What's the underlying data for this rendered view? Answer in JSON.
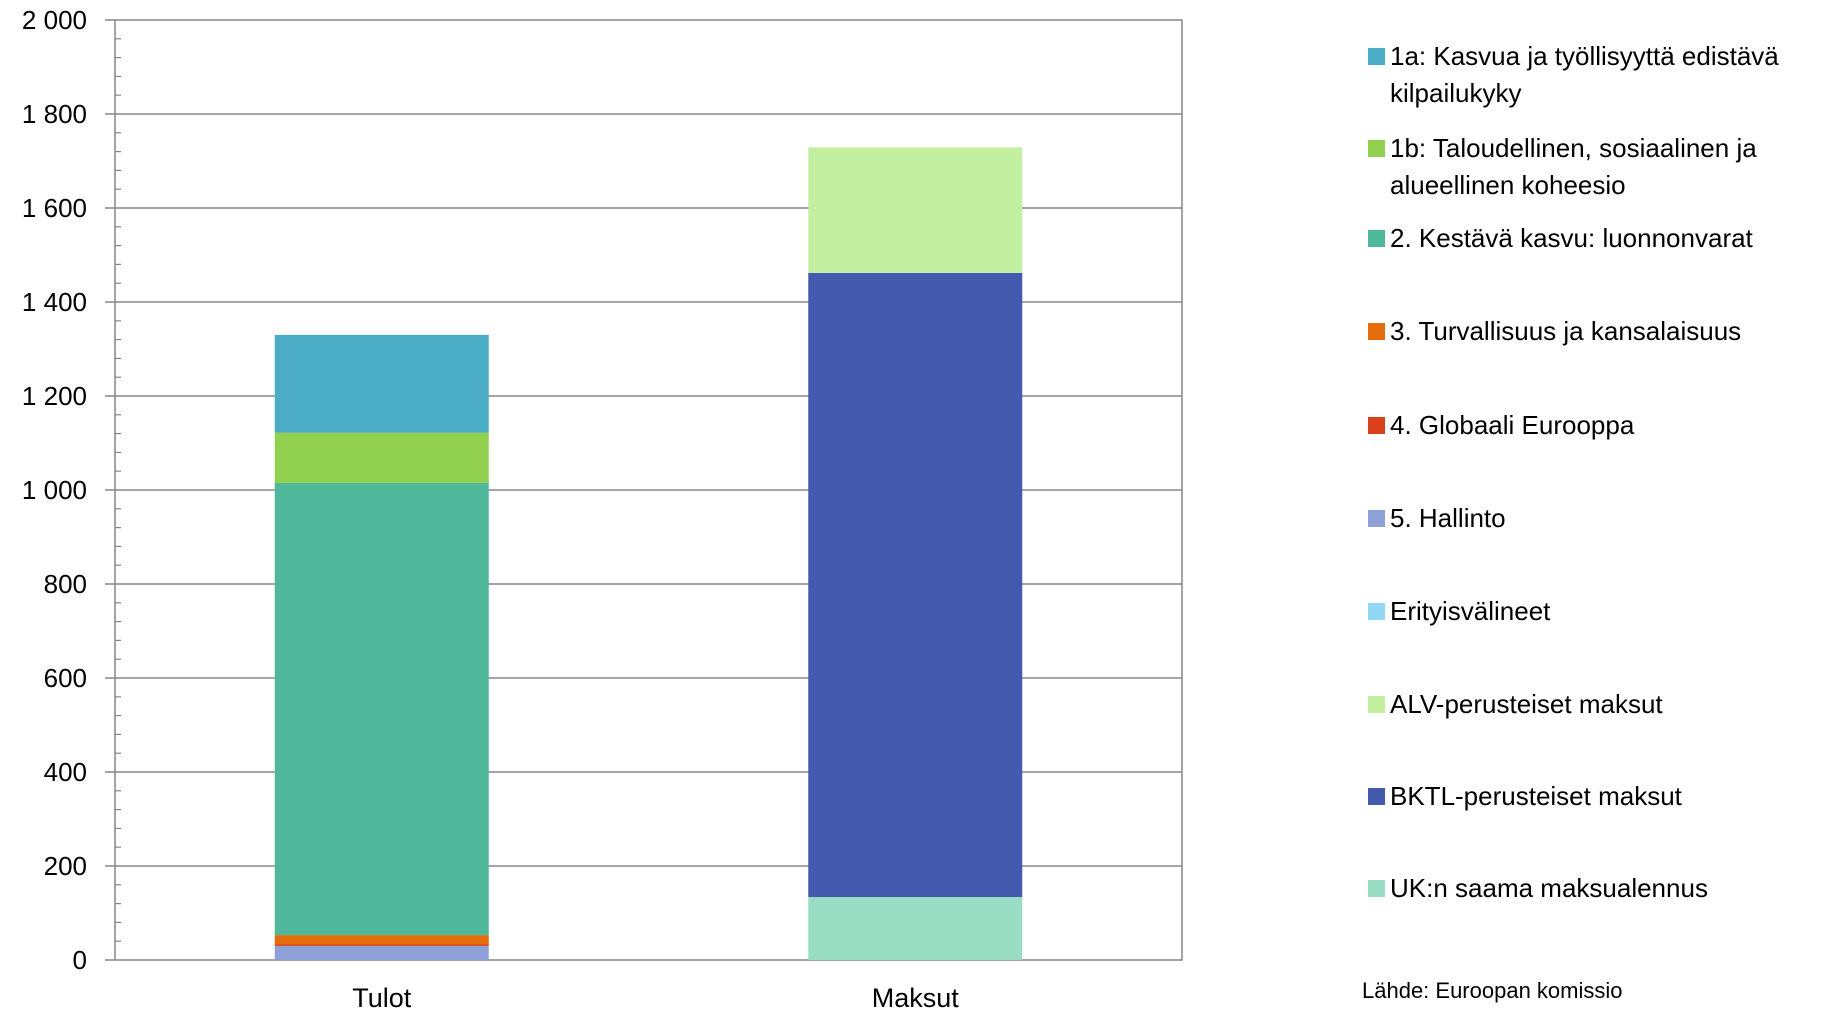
{
  "chart_data": {
    "type": "bar",
    "stacked": true,
    "categories": [
      "Tulot",
      "Maksut"
    ],
    "ylim": [
      0,
      2000
    ],
    "yticks": [
      0,
      200,
      400,
      600,
      800,
      1000,
      1200,
      1400,
      1600,
      1800,
      2000
    ],
    "ytick_labels": [
      "0",
      "200",
      "400",
      "600",
      "800",
      "1 000",
      "1 200",
      "1 400",
      "1 600",
      "1 800",
      "2 000"
    ],
    "grid": "horizontal",
    "legend_position": "right",
    "title": "",
    "xlabel": "",
    "ylabel": "",
    "series": [
      {
        "name": "1a: Kasvua ja työllisyyttä edistävä kilpailukyky",
        "color": "#4BACC6",
        "values": [
          208,
          0
        ]
      },
      {
        "name": "1b: Taloudellinen, sosiaalinen ja alueellinen koheesio",
        "color": "#92D050",
        "values": [
          107,
          0
        ]
      },
      {
        "name": "2. Kestävä kasvu: luonnonvarat",
        "color": "#4FB89A",
        "values": [
          962,
          0
        ]
      },
      {
        "name": "3. Turvallisuus ja kansalaisuus",
        "color": "#E46C0A",
        "values": [
          20,
          0
        ]
      },
      {
        "name": "4. Globaali Eurooppa",
        "color": "#D9401A",
        "values": [
          3,
          0
        ]
      },
      {
        "name": "5. Hallinto",
        "color": "#8EA0D8",
        "values": [
          30,
          0
        ]
      },
      {
        "name": "Erityisvälineet",
        "color": "#92D8F4",
        "values": [
          0,
          0
        ]
      },
      {
        "name": "ALV-perusteiset maksut",
        "color": "#C3F0A0",
        "values": [
          0,
          267
        ]
      },
      {
        "name": "BKTL-perusteiset maksut",
        "color": "#435AAE",
        "values": [
          0,
          1328
        ]
      },
      {
        "name": "UK:n saama maksualennus",
        "color": "#99DDC5",
        "values": [
          0,
          134
        ]
      }
    ],
    "stack_order_bottom_to_top": [
      "5. Hallinto",
      "4. Globaali Eurooppa",
      "3. Turvallisuus ja kansalaisuus",
      "2. Kestävä kasvu: luonnonvarat",
      "1b: Taloudellinen, sosiaalinen ja alueellinen koheesio",
      "1a: Kasvua ja työllisyyttä edistävä kilpailukyky",
      "Erityisvälineet",
      "UK:n saama maksualennus",
      "BKTL-perusteiset maksut",
      "ALV-perusteiset maksut"
    ]
  },
  "source_note": "Lähde: Euroopan komissio"
}
